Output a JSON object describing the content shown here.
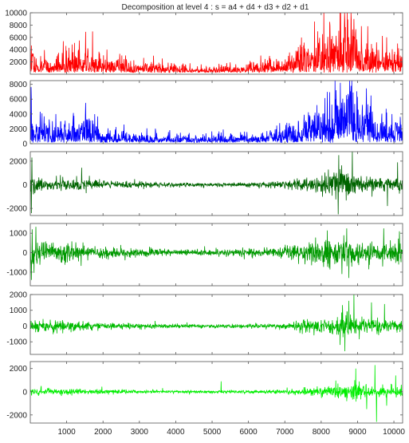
{
  "chart_data": {
    "type": "line",
    "title": "Decomposition at level 4 : s = a4 + d4 + d3 + d2 + d1",
    "x_range": [
      0,
      10240
    ],
    "x_ticks": [
      1000,
      2000,
      3000,
      4000,
      5000,
      6000,
      7000,
      8000,
      9000,
      10000
    ],
    "grid": false,
    "panels": [
      {
        "color": "#ff0000",
        "ylim": [
          0,
          10000
        ],
        "y_ticks": [
          2000,
          4000,
          6000,
          8000,
          10000
        ],
        "kind": "positive",
        "base": 900,
        "envelope": [
          [
            0,
            3000
          ],
          [
            150,
            1800
          ],
          [
            600,
            1500
          ],
          [
            900,
            1800
          ],
          [
            1100,
            2200
          ],
          [
            1550,
            2600
          ],
          [
            2000,
            1300
          ],
          [
            3000,
            1100
          ],
          [
            4000,
            700
          ],
          [
            5000,
            600
          ],
          [
            6000,
            800
          ],
          [
            7000,
            1500
          ],
          [
            7600,
            2800
          ],
          [
            8200,
            4200
          ],
          [
            8600,
            6200
          ],
          [
            8800,
            5800
          ],
          [
            9100,
            3400
          ],
          [
            9600,
            3000
          ],
          [
            10240,
            2200
          ]
        ],
        "spikes": [
          [
            1520,
            6900
          ],
          [
            8520,
            10000
          ],
          [
            8650,
            8500
          ],
          [
            8820,
            10000
          ],
          [
            8900,
            9000
          ],
          [
            9280,
            7800
          ],
          [
            9520,
            5200
          ],
          [
            9800,
            6000
          ],
          [
            10100,
            5000
          ],
          [
            1060,
            4300
          ],
          [
            7950,
            5000
          ]
        ]
      },
      {
        "color": "#0000ff",
        "ylim": [
          0,
          8500
        ],
        "y_ticks": [
          0,
          2000,
          4000,
          6000,
          8000
        ],
        "kind": "positive",
        "base": 500,
        "envelope": [
          [
            0,
            3000
          ],
          [
            150,
            1600
          ],
          [
            600,
            1800
          ],
          [
            900,
            1600
          ],
          [
            1100,
            1800
          ],
          [
            1550,
            2400
          ],
          [
            2000,
            1000
          ],
          [
            3000,
            700
          ],
          [
            4000,
            600
          ],
          [
            5000,
            600
          ],
          [
            6000,
            700
          ],
          [
            7000,
            1300
          ],
          [
            7600,
            2200
          ],
          [
            8200,
            3000
          ],
          [
            8600,
            4800
          ],
          [
            8800,
            4200
          ],
          [
            9100,
            2800
          ],
          [
            9600,
            2600
          ],
          [
            10240,
            1800
          ]
        ],
        "spikes": [
          [
            30,
            5900
          ],
          [
            1520,
            5500
          ],
          [
            8530,
            8200
          ],
          [
            8820,
            7800
          ],
          [
            8880,
            6900
          ],
          [
            9280,
            5300
          ],
          [
            9800,
            4200
          ],
          [
            9950,
            4000
          ],
          [
            700,
            4000
          ]
        ]
      },
      {
        "color": "#006400",
        "ylim": [
          -2600,
          2800
        ],
        "y_ticks": [
          -2000,
          0,
          2000
        ],
        "kind": "zero",
        "envelope": [
          [
            0,
            900
          ],
          [
            250,
            700
          ],
          [
            600,
            500
          ],
          [
            1000,
            600
          ],
          [
            1500,
            500
          ],
          [
            2000,
            350
          ],
          [
            3000,
            280
          ],
          [
            4000,
            180
          ],
          [
            5000,
            160
          ],
          [
            6000,
            200
          ],
          [
            7000,
            300
          ],
          [
            7500,
            600
          ],
          [
            8000,
            900
          ],
          [
            8300,
            1000
          ],
          [
            8500,
            1400
          ],
          [
            8800,
            1200
          ],
          [
            9200,
            700
          ],
          [
            9600,
            600
          ],
          [
            10240,
            650
          ]
        ],
        "spikes": [
          [
            30,
            -2400
          ],
          [
            45,
            2300
          ],
          [
            8480,
            2500
          ],
          [
            8470,
            -2500
          ],
          [
            8860,
            2800
          ],
          [
            9820,
            -1800
          ],
          [
            10100,
            1900
          ]
        ]
      },
      {
        "color": "#009900",
        "ylim": [
          -1700,
          1500
        ],
        "y_ticks": [
          -1000,
          0,
          1000
        ],
        "kind": "zero",
        "envelope": [
          [
            0,
            700
          ],
          [
            250,
            600
          ],
          [
            600,
            500
          ],
          [
            1000,
            500
          ],
          [
            1500,
            450
          ],
          [
            2000,
            300
          ],
          [
            3000,
            250
          ],
          [
            4000,
            180
          ],
          [
            5000,
            150
          ],
          [
            6000,
            200
          ],
          [
            7000,
            300
          ],
          [
            7500,
            500
          ],
          [
            8000,
            700
          ],
          [
            8300,
            750
          ],
          [
            8600,
            1000
          ],
          [
            8900,
            800
          ],
          [
            9200,
            550
          ],
          [
            9600,
            500
          ],
          [
            10240,
            550
          ]
        ],
        "spikes": [
          [
            30,
            -1400
          ],
          [
            50,
            1200
          ],
          [
            8700,
            1250
          ],
          [
            8760,
            -1300
          ],
          [
            9720,
            1250
          ],
          [
            10150,
            1100
          ]
        ]
      },
      {
        "color": "#00bb00",
        "ylim": [
          -1800,
          2000
        ],
        "y_ticks": [
          -1000,
          0,
          1000,
          2000
        ],
        "kind": "zero",
        "envelope": [
          [
            0,
            500
          ],
          [
            250,
            400
          ],
          [
            600,
            350
          ],
          [
            1000,
            350
          ],
          [
            1500,
            300
          ],
          [
            2000,
            200
          ],
          [
            3000,
            170
          ],
          [
            4000,
            130
          ],
          [
            5000,
            110
          ],
          [
            6000,
            150
          ],
          [
            7000,
            200
          ],
          [
            7500,
            400
          ],
          [
            8000,
            500
          ],
          [
            8300,
            600
          ],
          [
            8600,
            850
          ],
          [
            8900,
            600
          ],
          [
            9200,
            450
          ],
          [
            9600,
            420
          ],
          [
            10240,
            450
          ]
        ],
        "spikes": [
          [
            8650,
            -1600
          ],
          [
            8900,
            2000
          ],
          [
            8760,
            1600
          ],
          [
            8520,
            -1200
          ],
          [
            9380,
            1500
          ],
          [
            9740,
            1400
          ]
        ]
      },
      {
        "color": "#00ee00",
        "ylim": [
          -2700,
          2600
        ],
        "y_ticks": [
          -2000,
          0,
          2000
        ],
        "kind": "zero",
        "envelope": [
          [
            0,
            350
          ],
          [
            250,
            300
          ],
          [
            600,
            250
          ],
          [
            1000,
            300
          ],
          [
            1500,
            250
          ],
          [
            2000,
            200
          ],
          [
            3000,
            150
          ],
          [
            4000,
            130
          ],
          [
            5000,
            120
          ],
          [
            6000,
            140
          ],
          [
            7000,
            200
          ],
          [
            7500,
            300
          ],
          [
            8000,
            400
          ],
          [
            8300,
            500
          ],
          [
            8600,
            700
          ],
          [
            8900,
            800
          ],
          [
            9200,
            700
          ],
          [
            9600,
            500
          ],
          [
            10240,
            400
          ]
        ],
        "spikes": [
          [
            8950,
            2000
          ],
          [
            9480,
            2300
          ],
          [
            9520,
            -2600
          ],
          [
            9250,
            -1500
          ],
          [
            9800,
            -1200
          ],
          [
            10050,
            1400
          ],
          [
            5250,
            900
          ]
        ]
      }
    ]
  }
}
